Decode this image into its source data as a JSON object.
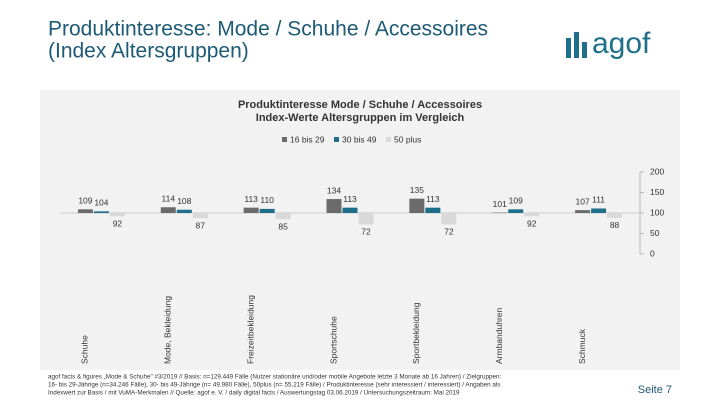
{
  "slide": {
    "title": [
      "Produktinteresse: Mode / Schuhe / Accessoires",
      "(Index Altersgruppen)"
    ],
    "logo": "agof",
    "footnote": [
      "agof facts & figures „Mode & Schuhe\" #3/2019 // Basis: n=129.449 Fälle (Nutzer stationäre und/oder mobile Angebote letzte 3 Monate ab 16 Jahren) / Zielgruppen:",
      "16- bis 29-Jährige (n=34.246 Fälle), 30- bis 49-Jährige (n= 49.980 Fälle), 50plus (n= 55.219 Fälle) / Produktinteresse (sehr interessiert / interessiert) / Angaben als",
      "Indexwert zur Basis / mit VuMA-Merkmalen // Quelle: agof e. V. / daily digital facts / Auswertungstag 03.06.2019 / Untersuchungszeitraum: Mai 2019"
    ],
    "page": "Seite 7"
  },
  "chart_data": {
    "type": "bar",
    "title": "Produktinteresse Mode / Schuhe / Accessoires",
    "subtitle": "Index-Werte Altersgruppen im Vergleich",
    "categories": [
      "Schuhe",
      "Mode, Bekleidung",
      "Freizeitbekleidung",
      "Sportschuhe",
      "Sportbekleidung",
      "Armbanduhren",
      "Schmuck"
    ],
    "series": [
      {
        "name": "16 bis 29",
        "color": "#6b6b6b",
        "values": [
          109,
          114,
          113,
          134,
          135,
          101,
          107
        ]
      },
      {
        "name": "30 bis 49",
        "color": "#1f6f8b",
        "values": [
          104,
          108,
          110,
          113,
          113,
          109,
          111
        ]
      },
      {
        "name": "50 plus",
        "color": "#d9d9d9",
        "values": [
          92,
          87,
          85,
          72,
          72,
          92,
          88
        ]
      }
    ],
    "baseline": 100,
    "ylim": [
      0,
      200
    ],
    "yticks": [
      0,
      50,
      100,
      150,
      200
    ],
    "legend": "top"
  }
}
